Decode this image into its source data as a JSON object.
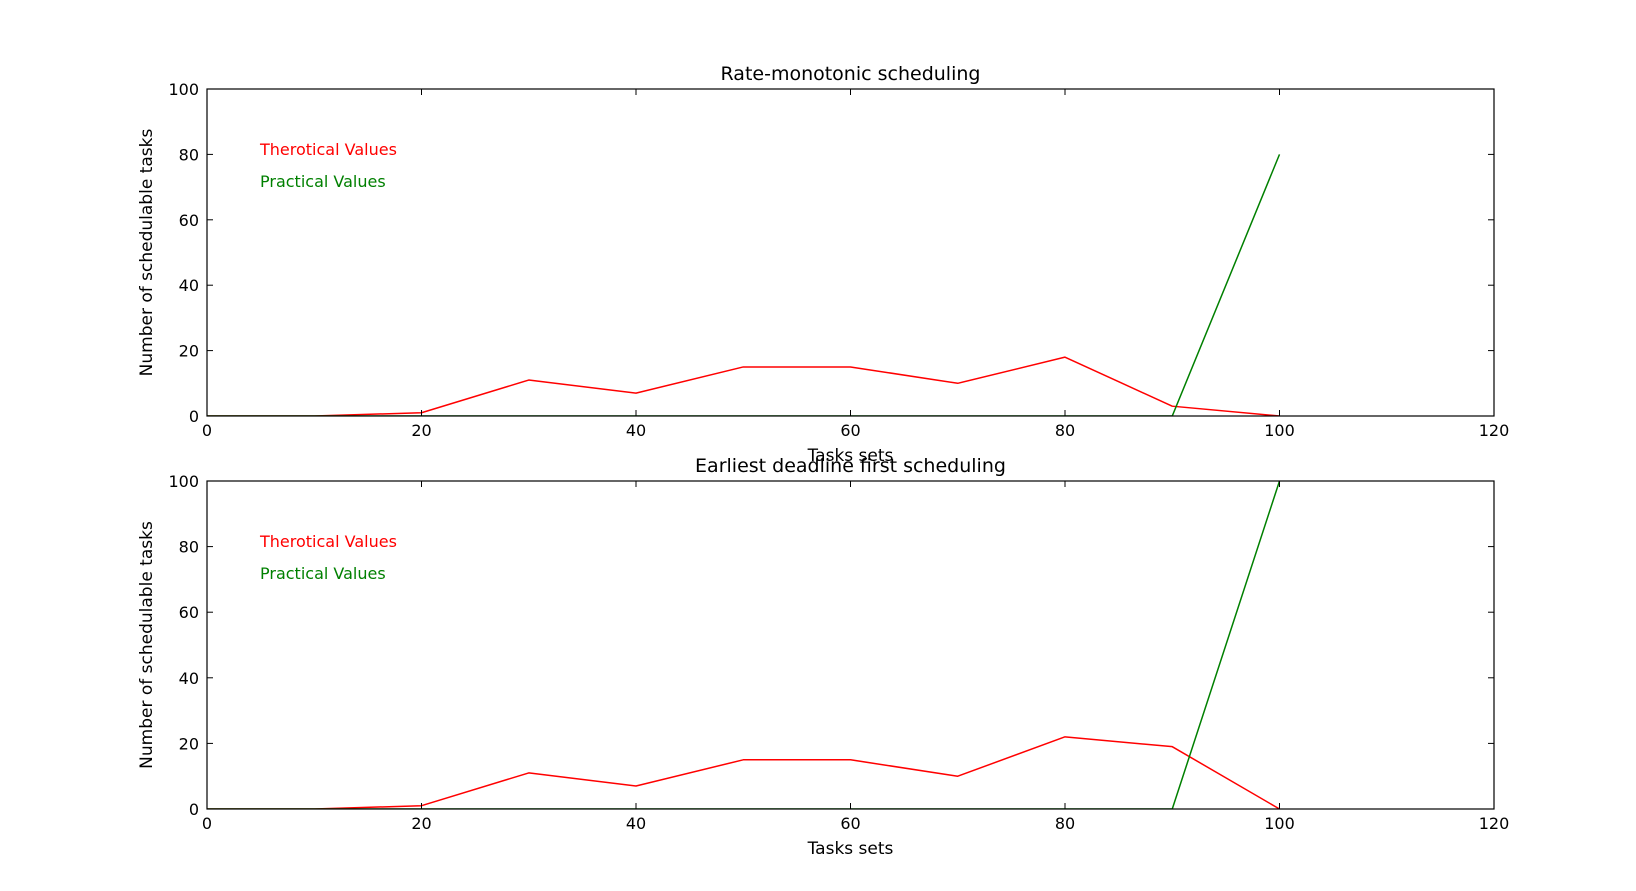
{
  "colors": {
    "theoretical": "#ff0000",
    "practical": "#008000",
    "axes": "#000000"
  },
  "chart_data": [
    {
      "type": "line",
      "title": "Rate-monotonic scheduling",
      "xlabel": "Tasks sets",
      "ylabel": "Number of schedulable tasks",
      "xlim": [
        0,
        120
      ],
      "ylim": [
        0,
        100
      ],
      "xticks": [
        0,
        20,
        40,
        60,
        80,
        100,
        120
      ],
      "yticks": [
        0,
        20,
        40,
        60,
        80,
        100
      ],
      "grid": false,
      "legend": "top-left",
      "series": [
        {
          "name": "Therotical Values",
          "color": "#ff0000",
          "x": [
            0,
            10,
            20,
            30,
            40,
            50,
            60,
            70,
            80,
            90,
            100
          ],
          "y": [
            0,
            0,
            1,
            11,
            7,
            15,
            15,
            10,
            18,
            3,
            0
          ]
        },
        {
          "name": "Practical Values",
          "color": "#008000",
          "x": [
            0,
            10,
            20,
            30,
            40,
            50,
            60,
            70,
            80,
            90,
            100
          ],
          "y": [
            0,
            0,
            0,
            0,
            0,
            0,
            0,
            0,
            0,
            0,
            80
          ]
        }
      ]
    },
    {
      "type": "line",
      "title": "Earliest deadline first scheduling",
      "xlabel": "Tasks sets",
      "ylabel": "Number of schedulable tasks",
      "xlim": [
        0,
        120
      ],
      "ylim": [
        0,
        100
      ],
      "xticks": [
        0,
        20,
        40,
        60,
        80,
        100,
        120
      ],
      "yticks": [
        0,
        20,
        40,
        60,
        80,
        100
      ],
      "grid": false,
      "legend": "top-left",
      "series": [
        {
          "name": "Therotical Values",
          "color": "#ff0000",
          "x": [
            0,
            10,
            20,
            30,
            40,
            50,
            60,
            70,
            80,
            90,
            100
          ],
          "y": [
            0,
            0,
            1,
            11,
            7,
            15,
            15,
            10,
            22,
            19,
            0
          ]
        },
        {
          "name": "Practical Values",
          "color": "#008000",
          "x": [
            0,
            10,
            20,
            30,
            40,
            50,
            60,
            70,
            80,
            90,
            100
          ],
          "y": [
            0,
            0,
            0,
            0,
            0,
            0,
            0,
            0,
            0,
            0,
            100
          ]
        }
      ]
    }
  ]
}
